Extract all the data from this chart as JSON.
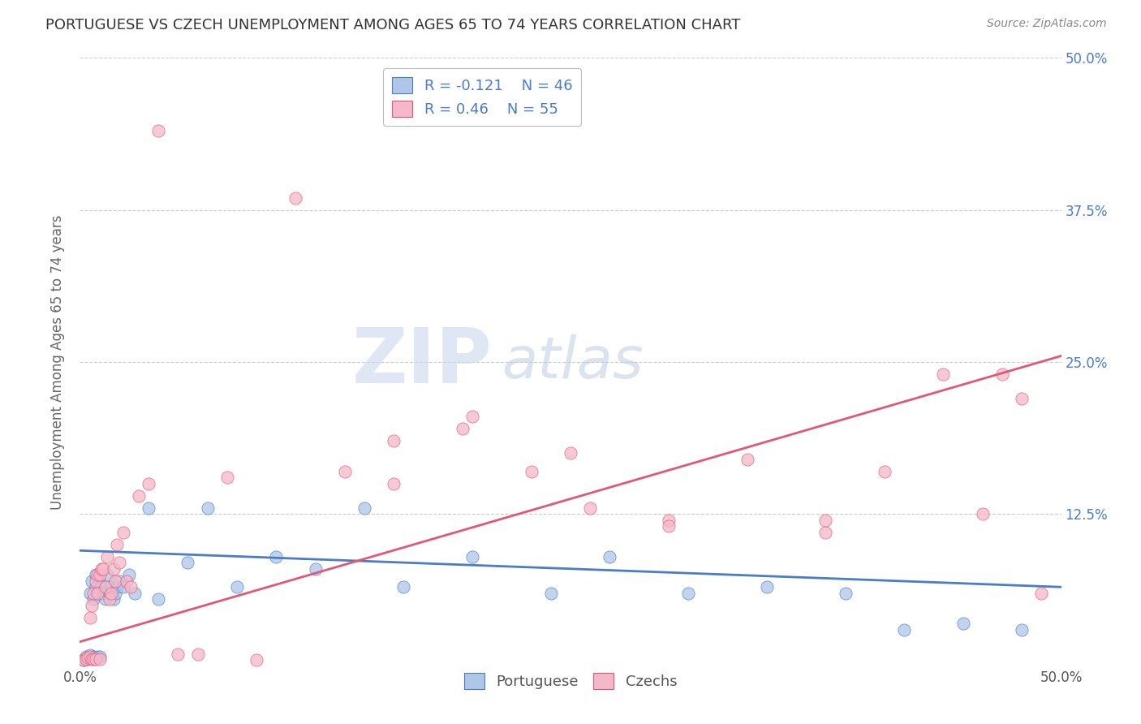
{
  "title": "PORTUGUESE VS CZECH UNEMPLOYMENT AMONG AGES 65 TO 74 YEARS CORRELATION CHART",
  "source": "Source: ZipAtlas.com",
  "ylabel": "Unemployment Among Ages 65 to 74 years",
  "xlim": [
    0.0,
    0.5
  ],
  "ylim": [
    0.0,
    0.5
  ],
  "xticks": [
    0.0,
    0.1,
    0.2,
    0.3,
    0.4,
    0.5
  ],
  "yticks": [
    0.0,
    0.125,
    0.25,
    0.375,
    0.5
  ],
  "xticklabels": [
    "0.0%",
    "",
    "",
    "",
    "",
    "50.0%"
  ],
  "yticklabels_right": [
    "",
    "12.5%",
    "25.0%",
    "37.5%",
    "50.0%"
  ],
  "blue_R": -0.121,
  "blue_N": 46,
  "pink_R": 0.46,
  "pink_N": 55,
  "blue_color": "#aec6e8",
  "pink_color": "#f5b8c8",
  "blue_line_color": "#4a7cc9",
  "pink_line_color": "#e05878",
  "blue_edge_color": "#4a7cc9",
  "pink_edge_color": "#e05878",
  "background_color": "#ffffff",
  "grid_color": "#cccccc",
  "watermark_zip": "ZIP",
  "watermark_atlas": "atlas",
  "blue_points_x": [
    0.002,
    0.003,
    0.004,
    0.005,
    0.005,
    0.006,
    0.006,
    0.007,
    0.007,
    0.008,
    0.008,
    0.009,
    0.009,
    0.01,
    0.01,
    0.011,
    0.012,
    0.013,
    0.014,
    0.015,
    0.016,
    0.017,
    0.018,
    0.019,
    0.02,
    0.022,
    0.025,
    0.028,
    0.035,
    0.04,
    0.055,
    0.065,
    0.08,
    0.1,
    0.12,
    0.145,
    0.165,
    0.2,
    0.24,
    0.27,
    0.31,
    0.35,
    0.39,
    0.42,
    0.45,
    0.48
  ],
  "blue_points_y": [
    0.005,
    0.008,
    0.006,
    0.009,
    0.06,
    0.07,
    0.007,
    0.055,
    0.008,
    0.065,
    0.075,
    0.06,
    0.008,
    0.07,
    0.008,
    0.065,
    0.06,
    0.055,
    0.075,
    0.06,
    0.065,
    0.055,
    0.06,
    0.065,
    0.07,
    0.065,
    0.075,
    0.06,
    0.13,
    0.055,
    0.085,
    0.13,
    0.065,
    0.09,
    0.08,
    0.13,
    0.065,
    0.09,
    0.06,
    0.09,
    0.06,
    0.065,
    0.06,
    0.03,
    0.035,
    0.03
  ],
  "pink_points_x": [
    0.002,
    0.003,
    0.004,
    0.005,
    0.005,
    0.006,
    0.006,
    0.007,
    0.007,
    0.008,
    0.008,
    0.009,
    0.009,
    0.01,
    0.01,
    0.011,
    0.012,
    0.013,
    0.014,
    0.015,
    0.016,
    0.017,
    0.018,
    0.019,
    0.02,
    0.022,
    0.024,
    0.026,
    0.03,
    0.035,
    0.04,
    0.05,
    0.06,
    0.075,
    0.09,
    0.11,
    0.135,
    0.16,
    0.195,
    0.23,
    0.26,
    0.3,
    0.34,
    0.38,
    0.41,
    0.44,
    0.46,
    0.47,
    0.48,
    0.49,
    0.16,
    0.2,
    0.25,
    0.3,
    0.38
  ],
  "pink_points_y": [
    0.005,
    0.006,
    0.007,
    0.008,
    0.04,
    0.05,
    0.006,
    0.06,
    0.006,
    0.07,
    0.006,
    0.06,
    0.075,
    0.075,
    0.006,
    0.08,
    0.08,
    0.065,
    0.09,
    0.055,
    0.06,
    0.08,
    0.07,
    0.1,
    0.085,
    0.11,
    0.07,
    0.065,
    0.14,
    0.15,
    0.44,
    0.01,
    0.01,
    0.155,
    0.005,
    0.385,
    0.16,
    0.15,
    0.195,
    0.16,
    0.13,
    0.12,
    0.17,
    0.11,
    0.16,
    0.24,
    0.125,
    0.24,
    0.22,
    0.06,
    0.185,
    0.205,
    0.175,
    0.115,
    0.12
  ],
  "blue_line_x0": 0.0,
  "blue_line_y0": 0.095,
  "blue_line_x1": 0.5,
  "blue_line_y1": 0.065,
  "pink_line_x0": 0.0,
  "pink_line_y0": 0.02,
  "pink_line_x1": 0.5,
  "pink_line_y1": 0.255
}
